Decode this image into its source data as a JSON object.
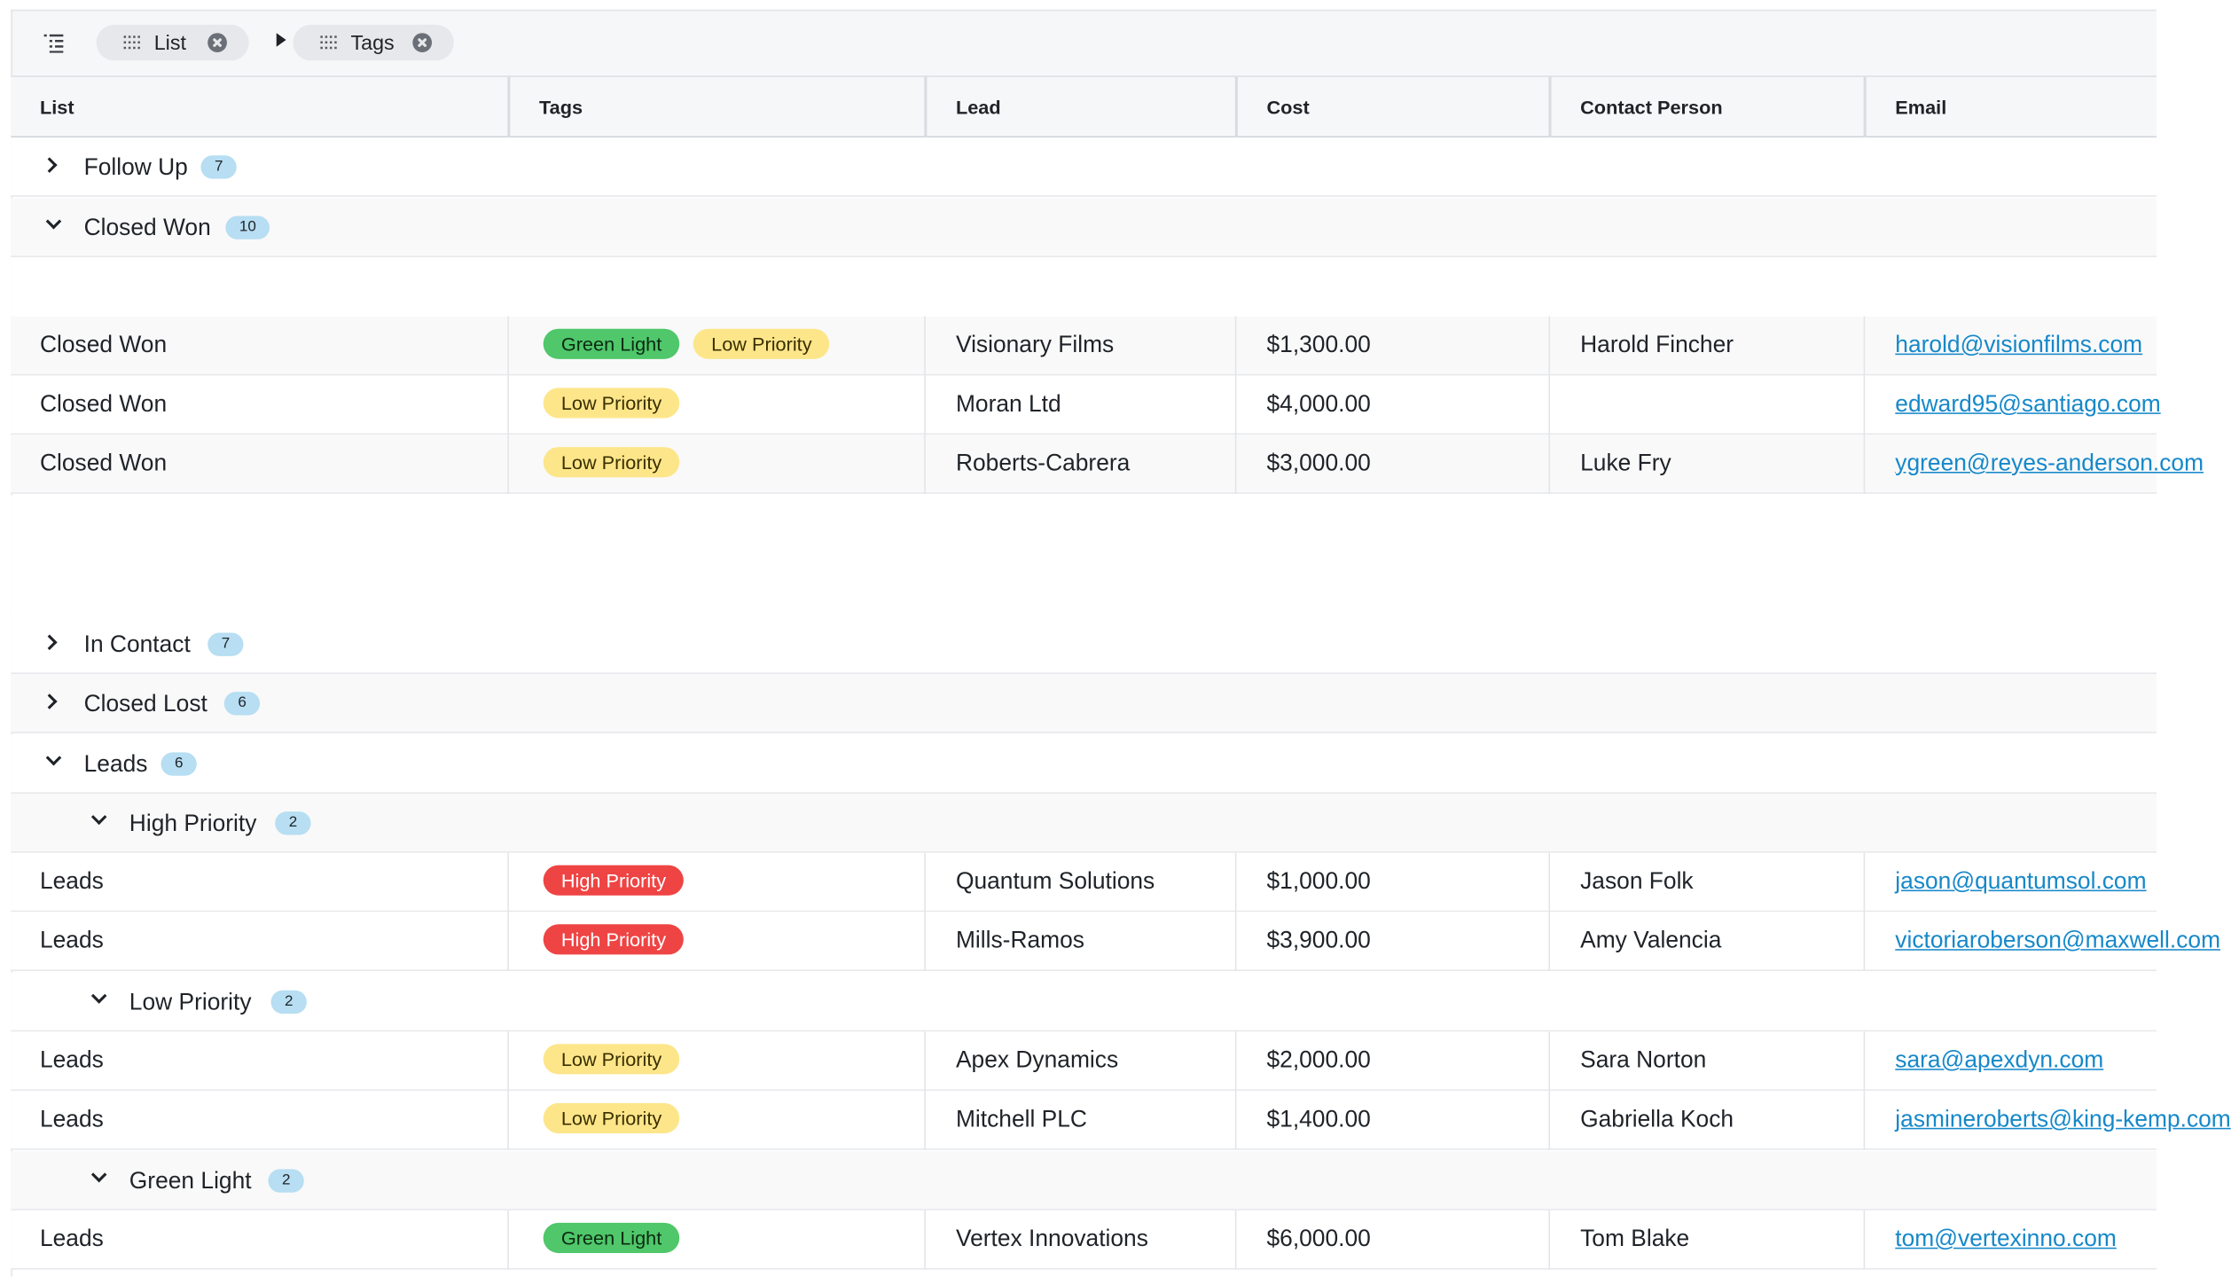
{
  "toolbar": {
    "toc_icon": "list-tree-icon",
    "chips": [
      {
        "label": "List",
        "icon": "grip-icon"
      },
      {
        "label": "Tags",
        "icon": "grip-icon"
      }
    ],
    "separator_icon": "caret-right-icon"
  },
  "columns": [
    "List",
    "Tags",
    "Lead",
    "Cost",
    "Contact Person",
    "Email"
  ],
  "groups": {
    "follow_up": {
      "label": "Follow Up",
      "count": "7"
    },
    "closed_won": {
      "label": "Closed Won",
      "count": "10"
    },
    "in_contact": {
      "label": "In Contact",
      "count": "7"
    },
    "closed_lost": {
      "label": "Closed Lost",
      "count": "6"
    },
    "leads": {
      "label": "Leads",
      "count": "6"
    },
    "high_priority": {
      "label": "High Priority",
      "count": "2"
    },
    "low_priority": {
      "label": "Low Priority",
      "count": "2"
    },
    "green_light": {
      "label": "Green Light",
      "count": "2"
    }
  },
  "closed_won_rows": [
    {
      "list": "Closed Won",
      "tags": [
        "Green Light",
        "Low Priority"
      ],
      "lead": "Visionary Films",
      "cost": "$1,300.00",
      "contact": "Harold Fincher",
      "email": "harold@visionfilms.com"
    },
    {
      "list": "Closed Won",
      "tags": [
        "Low Priority"
      ],
      "lead": "Moran Ltd",
      "cost": "$4,000.00",
      "contact": "",
      "email": "edward95@santiago.com"
    },
    {
      "list": "Closed Won",
      "tags": [
        "Low Priority"
      ],
      "lead": "Roberts-Cabrera",
      "cost": "$3,000.00",
      "contact": "Luke Fry",
      "email": "ygreen@reyes-anderson.com"
    }
  ],
  "high_priority_rows": [
    {
      "list": "Leads",
      "tags": [
        "High Priority"
      ],
      "lead": "Quantum Solutions",
      "cost": "$1,000.00",
      "contact": "Jason Folk",
      "email": "jason@quantumsol.com"
    },
    {
      "list": "Leads",
      "tags": [
        "High Priority"
      ],
      "lead": "Mills-Ramos",
      "cost": "$3,900.00",
      "contact": "Amy Valencia",
      "email": "victoriaroberson@maxwell.com"
    }
  ],
  "low_priority_rows": [
    {
      "list": "Leads",
      "tags": [
        "Low Priority"
      ],
      "lead": "Apex Dynamics",
      "cost": "$2,000.00",
      "contact": "Sara Norton",
      "email": "sara@apexdyn.com"
    },
    {
      "list": "Leads",
      "tags": [
        "Low Priority"
      ],
      "lead": "Mitchell PLC",
      "cost": "$1,400.00",
      "contact": "Gabriella Koch",
      "email": "jasmineroberts@king-kemp.com"
    }
  ],
  "green_light_rows": [
    {
      "list": "Leads",
      "tags": [
        "Green Light"
      ],
      "lead": "Vertex Innovations",
      "cost": "$6,000.00",
      "contact": "Tom Blake",
      "email": "tom@vertexinno.com"
    }
  ],
  "tag_colors": {
    "Green Light": "#4fc76a",
    "Low Priority": "#fde68a",
    "High Priority": "#ef4444"
  }
}
